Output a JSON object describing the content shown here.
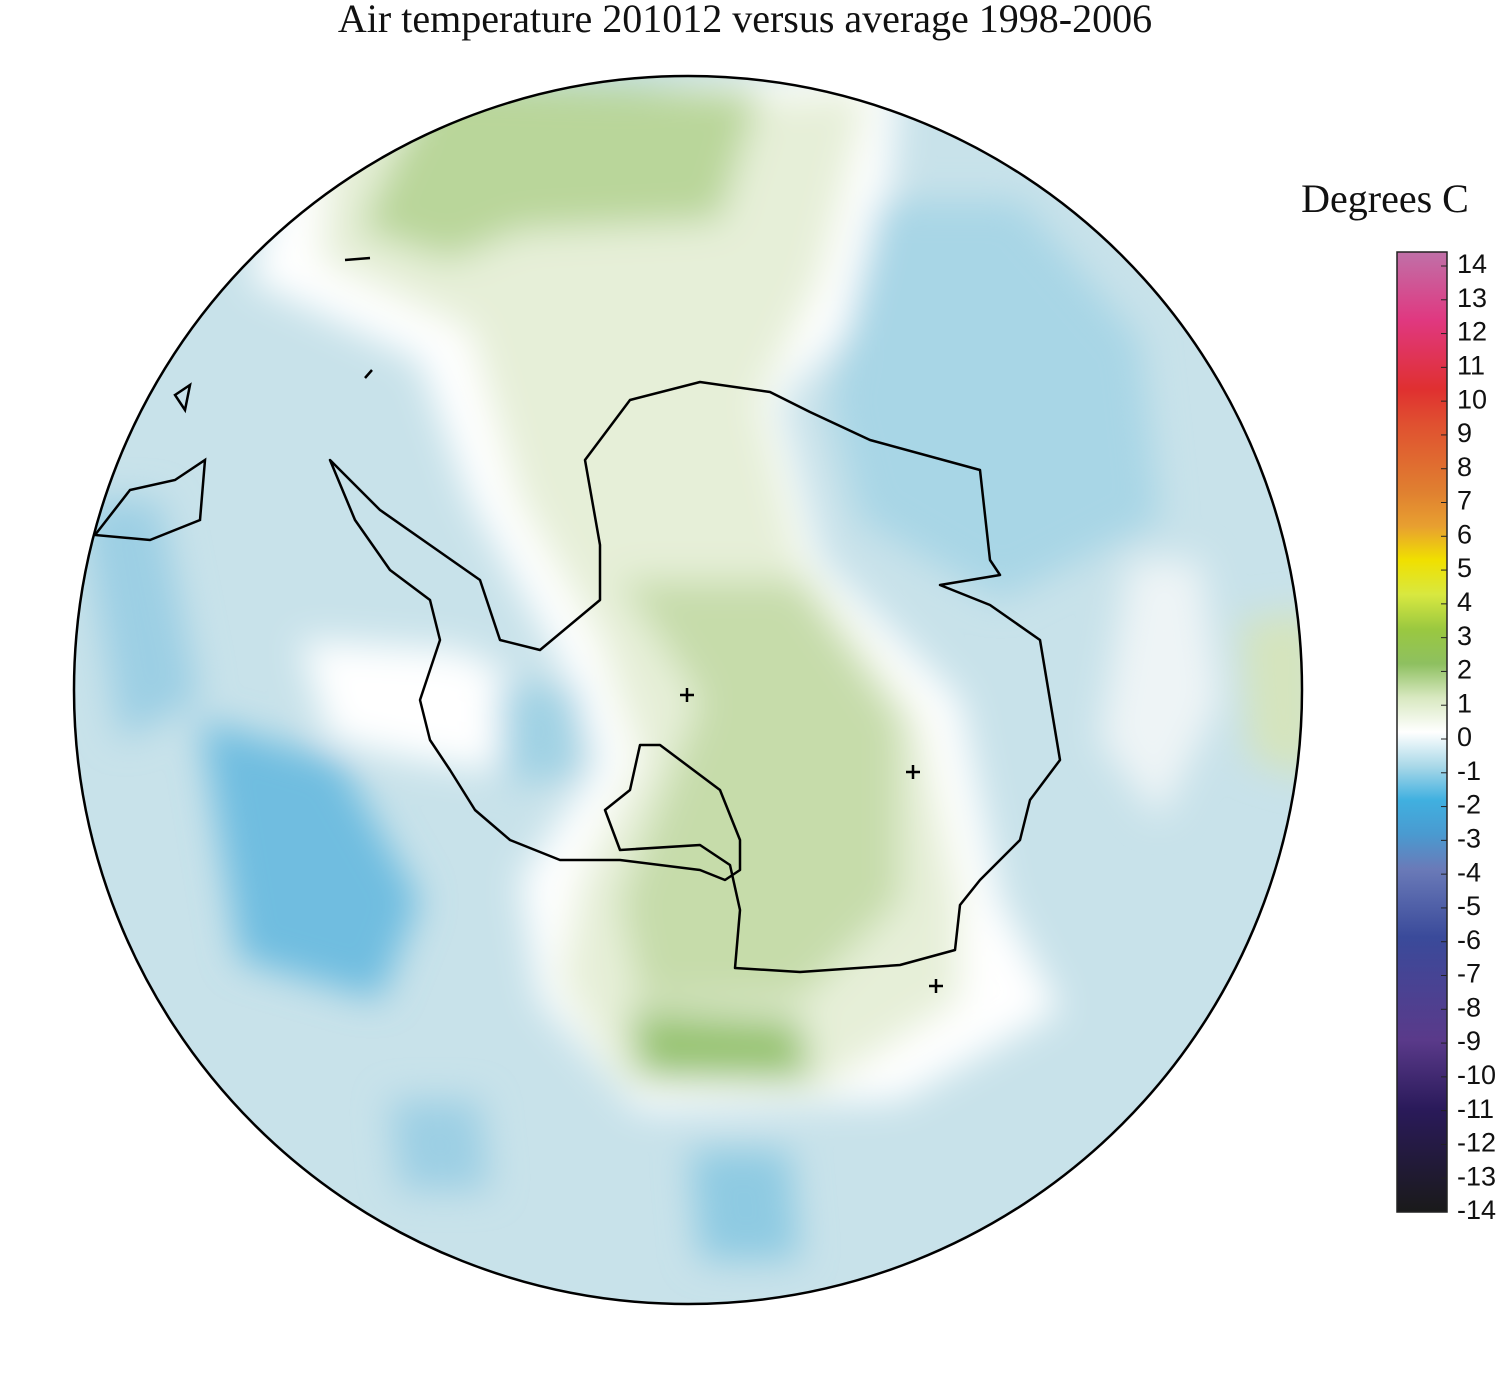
{
  "title": "Air temperature 201012 versus average 1998-2006",
  "legend": {
    "label": "Degrees C",
    "range": [
      -14,
      14
    ],
    "ticks": [
      14,
      13,
      12,
      11,
      10,
      9,
      8,
      7,
      6,
      5,
      4,
      3,
      2,
      1,
      0,
      -1,
      -2,
      -3,
      -4,
      -5,
      -6,
      -7,
      -8,
      -9,
      -10,
      -11,
      -12,
      -13,
      -14
    ]
  }
}
